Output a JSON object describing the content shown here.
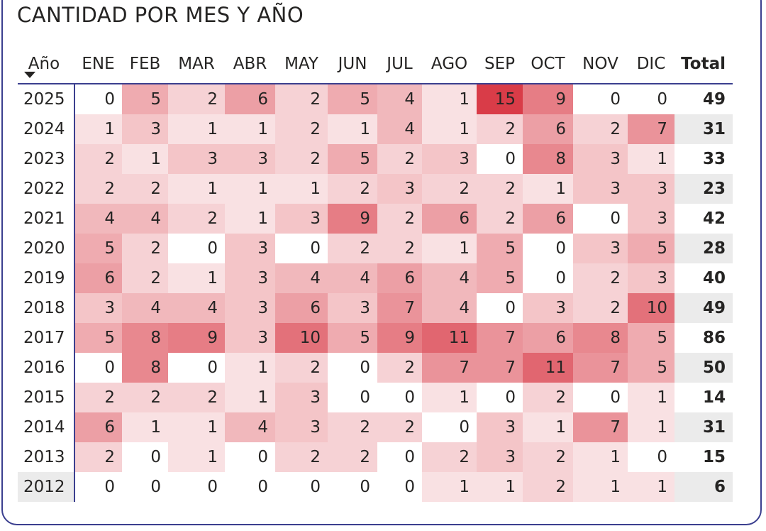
{
  "title": "CANTIDAD POR MES Y AÑO",
  "table": {
    "header": [
      "Año",
      "ENE",
      "FEB",
      "MAR",
      "ABR",
      "MAY",
      "JUN",
      "JUL",
      "AGO",
      "SEP",
      "OCT",
      "NOV",
      "DIC",
      "Total"
    ],
    "rows": [
      {
        "year": "2025",
        "values": [
          0,
          5,
          2,
          6,
          2,
          5,
          4,
          1,
          15,
          9,
          0,
          0
        ],
        "total": 49
      },
      {
        "year": "2024",
        "values": [
          1,
          3,
          1,
          1,
          2,
          1,
          4,
          1,
          2,
          6,
          2,
          7
        ],
        "total": 31
      },
      {
        "year": "2023",
        "values": [
          2,
          1,
          3,
          3,
          2,
          5,
          2,
          3,
          0,
          8,
          3,
          1
        ],
        "total": 33
      },
      {
        "year": "2022",
        "values": [
          2,
          2,
          1,
          1,
          1,
          2,
          3,
          2,
          2,
          1,
          3,
          3
        ],
        "total": 23
      },
      {
        "year": "2021",
        "values": [
          4,
          4,
          2,
          1,
          3,
          9,
          2,
          6,
          2,
          6,
          0,
          3
        ],
        "total": 42
      },
      {
        "year": "2020",
        "values": [
          5,
          2,
          0,
          3,
          0,
          2,
          2,
          1,
          5,
          0,
          3,
          5
        ],
        "total": 28
      },
      {
        "year": "2019",
        "values": [
          6,
          2,
          1,
          3,
          4,
          4,
          6,
          4,
          5,
          0,
          2,
          3
        ],
        "total": 40
      },
      {
        "year": "2018",
        "values": [
          3,
          4,
          4,
          3,
          6,
          3,
          7,
          4,
          0,
          3,
          2,
          10
        ],
        "total": 49
      },
      {
        "year": "2017",
        "values": [
          5,
          8,
          9,
          3,
          10,
          5,
          9,
          11,
          7,
          6,
          8,
          5
        ],
        "total": 86
      },
      {
        "year": "2016",
        "values": [
          0,
          8,
          0,
          1,
          2,
          0,
          2,
          7,
          7,
          11,
          7,
          5
        ],
        "total": 50
      },
      {
        "year": "2015",
        "values": [
          2,
          2,
          2,
          1,
          3,
          0,
          0,
          1,
          0,
          2,
          0,
          1
        ],
        "total": 14
      },
      {
        "year": "2014",
        "values": [
          6,
          1,
          1,
          4,
          3,
          2,
          2,
          0,
          3,
          1,
          7,
          1
        ],
        "total": 31
      },
      {
        "year": "2013",
        "values": [
          2,
          0,
          1,
          0,
          2,
          2,
          0,
          2,
          3,
          2,
          1,
          0
        ],
        "total": 15
      },
      {
        "year": "2012",
        "values": [
          0,
          0,
          0,
          0,
          0,
          0,
          0,
          1,
          1,
          2,
          1,
          1
        ],
        "total": 6
      }
    ]
  }
}
